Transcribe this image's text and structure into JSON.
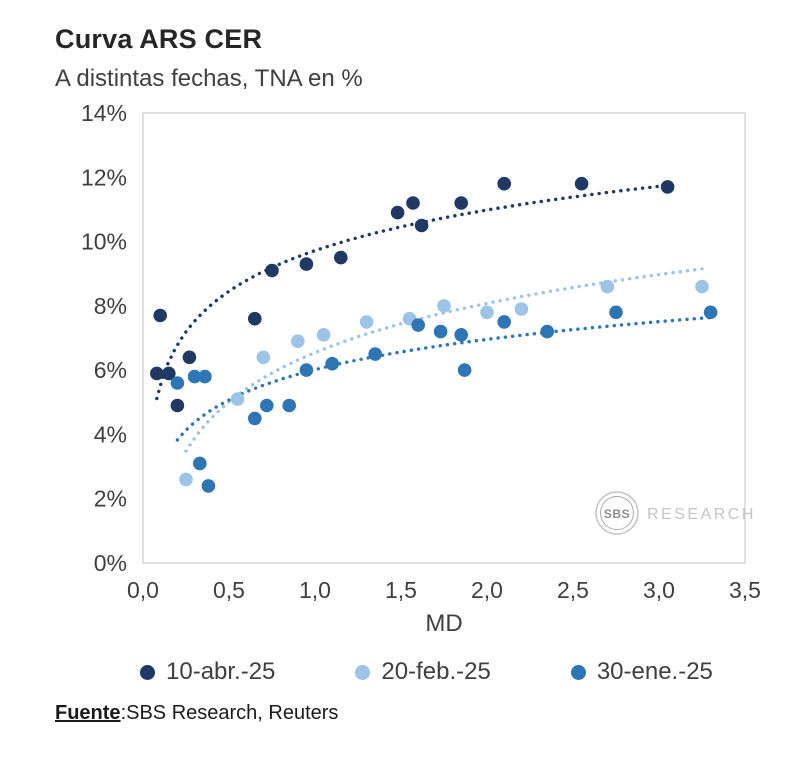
{
  "header": {
    "title": "Curva ARS CER",
    "subtitle": "A distintas fechas, TNA en %"
  },
  "watermark": {
    "logo_text": "SBS",
    "label": "RESEARCH"
  },
  "footer": {
    "source_label": "Fuente",
    "source_text": ":SBS Research, Reuters"
  },
  "chart_data": {
    "type": "scatter",
    "title": "Curva ARS CER",
    "subtitle": "A distintas fechas, TNA en %",
    "xlabel": "MD",
    "ylabel": "",
    "xlim": [
      0,
      3.5
    ],
    "ylim": [
      0,
      14
    ],
    "x_ticks": [
      "0,0",
      "0,5",
      "1,0",
      "1,5",
      "2,0",
      "2,5",
      "3,0",
      "3,5"
    ],
    "y_ticks": [
      "0%",
      "2%",
      "4%",
      "6%",
      "8%",
      "10%",
      "12%",
      "14%"
    ],
    "grid": false,
    "legend_position": "bottom",
    "trendline": "logarithmic-dotted",
    "series": [
      {
        "name": "10-abr.-25",
        "color": "#1f3864",
        "points": [
          [
            0.08,
            5.9
          ],
          [
            0.1,
            7.7
          ],
          [
            0.15,
            5.9
          ],
          [
            0.2,
            4.9
          ],
          [
            0.27,
            6.4
          ],
          [
            0.65,
            7.6
          ],
          [
            0.75,
            9.1
          ],
          [
            0.95,
            9.3
          ],
          [
            1.15,
            9.5
          ],
          [
            1.48,
            10.9
          ],
          [
            1.57,
            11.2
          ],
          [
            1.62,
            10.5
          ],
          [
            1.85,
            11.2
          ],
          [
            2.1,
            11.8
          ],
          [
            2.55,
            11.8
          ],
          [
            3.05,
            11.7
          ]
        ]
      },
      {
        "name": "20-feb.-25",
        "color": "#9dc3e6",
        "points": [
          [
            0.25,
            2.6
          ],
          [
            0.55,
            5.1
          ],
          [
            0.7,
            6.4
          ],
          [
            0.9,
            6.9
          ],
          [
            1.05,
            7.1
          ],
          [
            1.3,
            7.5
          ],
          [
            1.55,
            7.6
          ],
          [
            1.75,
            8.0
          ],
          [
            2.0,
            7.8
          ],
          [
            2.2,
            7.9
          ],
          [
            2.7,
            8.6
          ],
          [
            3.25,
            8.6
          ]
        ]
      },
      {
        "name": "30-ene.-25",
        "color": "#2e75b6",
        "points": [
          [
            0.2,
            5.6
          ],
          [
            0.3,
            5.8
          ],
          [
            0.36,
            5.8
          ],
          [
            0.33,
            3.1
          ],
          [
            0.38,
            2.4
          ],
          [
            0.65,
            4.5
          ],
          [
            0.72,
            4.9
          ],
          [
            0.85,
            4.9
          ],
          [
            0.95,
            6.0
          ],
          [
            1.1,
            6.2
          ],
          [
            1.35,
            6.5
          ],
          [
            1.6,
            7.4
          ],
          [
            1.73,
            7.2
          ],
          [
            1.85,
            7.1
          ],
          [
            1.87,
            6.0
          ],
          [
            2.1,
            7.5
          ],
          [
            2.35,
            7.2
          ],
          [
            2.75,
            7.8
          ],
          [
            3.3,
            7.8
          ]
        ]
      }
    ]
  }
}
